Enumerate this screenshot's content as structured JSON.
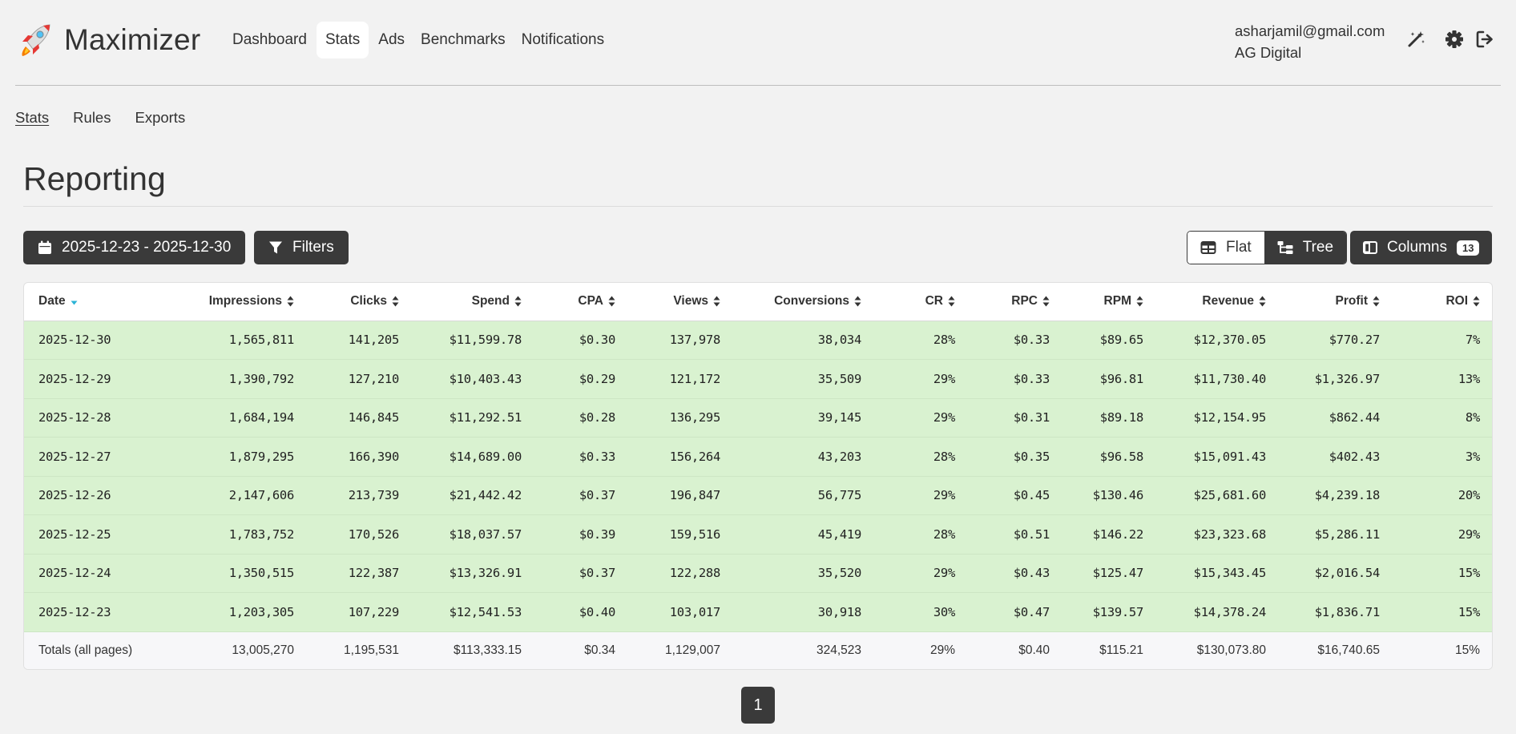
{
  "brand": {
    "name": "Maximizer"
  },
  "nav": {
    "items": [
      {
        "label": "Dashboard",
        "active": false
      },
      {
        "label": "Stats",
        "active": true
      },
      {
        "label": "Ads",
        "active": false
      },
      {
        "label": "Benchmarks",
        "active": false
      },
      {
        "label": "Notifications",
        "active": false
      }
    ]
  },
  "user": {
    "email": "asharjamil@gmail.com",
    "org": "AG Digital"
  },
  "header_icons": [
    "magic-wand-icon",
    "gear-icon",
    "logout-icon"
  ],
  "subnav": {
    "items": [
      {
        "label": "Stats",
        "active": true
      },
      {
        "label": "Rules",
        "active": false
      },
      {
        "label": "Exports",
        "active": false
      }
    ]
  },
  "page": {
    "title": "Reporting"
  },
  "toolbar": {
    "date_range_label": "2025-12-23 - 2025-12-30",
    "filters_label": "Filters",
    "view_flat_label": "Flat",
    "view_tree_label": "Tree",
    "selected_view": "Tree",
    "columns_label": "Columns",
    "columns_count": "13"
  },
  "colors": {
    "accent_dark": "#3a3a3a",
    "row_highlight": "#d9f2d0",
    "sort_active": "#2bb3d6"
  },
  "table": {
    "sorted_column": "Date",
    "sort_direction": "desc",
    "columns": [
      "Date",
      "Impressions",
      "Clicks",
      "Spend",
      "CPA",
      "Views",
      "Conversions",
      "CR",
      "RPC",
      "RPM",
      "Revenue",
      "Profit",
      "ROI"
    ],
    "rows": [
      [
        "2025-12-30",
        "1,565,811",
        "141,205",
        "$11,599.78",
        "$0.30",
        "137,978",
        "38,034",
        "28%",
        "$0.33",
        "$89.65",
        "$12,370.05",
        "$770.27",
        "7%"
      ],
      [
        "2025-12-29",
        "1,390,792",
        "127,210",
        "$10,403.43",
        "$0.29",
        "121,172",
        "35,509",
        "29%",
        "$0.33",
        "$96.81",
        "$11,730.40",
        "$1,326.97",
        "13%"
      ],
      [
        "2025-12-28",
        "1,684,194",
        "146,845",
        "$11,292.51",
        "$0.28",
        "136,295",
        "39,145",
        "29%",
        "$0.31",
        "$89.18",
        "$12,154.95",
        "$862.44",
        "8%"
      ],
      [
        "2025-12-27",
        "1,879,295",
        "166,390",
        "$14,689.00",
        "$0.33",
        "156,264",
        "43,203",
        "28%",
        "$0.35",
        "$96.58",
        "$15,091.43",
        "$402.43",
        "3%"
      ],
      [
        "2025-12-26",
        "2,147,606",
        "213,739",
        "$21,442.42",
        "$0.37",
        "196,847",
        "56,775",
        "29%",
        "$0.45",
        "$130.46",
        "$25,681.60",
        "$4,239.18",
        "20%"
      ],
      [
        "2025-12-25",
        "1,783,752",
        "170,526",
        "$18,037.57",
        "$0.39",
        "159,516",
        "45,419",
        "28%",
        "$0.51",
        "$146.22",
        "$23,323.68",
        "$5,286.11",
        "29%"
      ],
      [
        "2025-12-24",
        "1,350,515",
        "122,387",
        "$13,326.91",
        "$0.37",
        "122,288",
        "35,520",
        "29%",
        "$0.43",
        "$125.47",
        "$15,343.45",
        "$2,016.54",
        "15%"
      ],
      [
        "2025-12-23",
        "1,203,305",
        "107,229",
        "$12,541.53",
        "$0.40",
        "103,017",
        "30,918",
        "30%",
        "$0.47",
        "$139.57",
        "$14,378.24",
        "$1,836.71",
        "15%"
      ]
    ],
    "totals": [
      "Totals (all pages)",
      "13,005,270",
      "1,195,531",
      "$113,333.15",
      "$0.34",
      "1,129,007",
      "324,523",
      "29%",
      "$0.40",
      "$115.21",
      "$130,073.80",
      "$16,740.65",
      "15%"
    ]
  },
  "pagination": {
    "current": "1"
  }
}
